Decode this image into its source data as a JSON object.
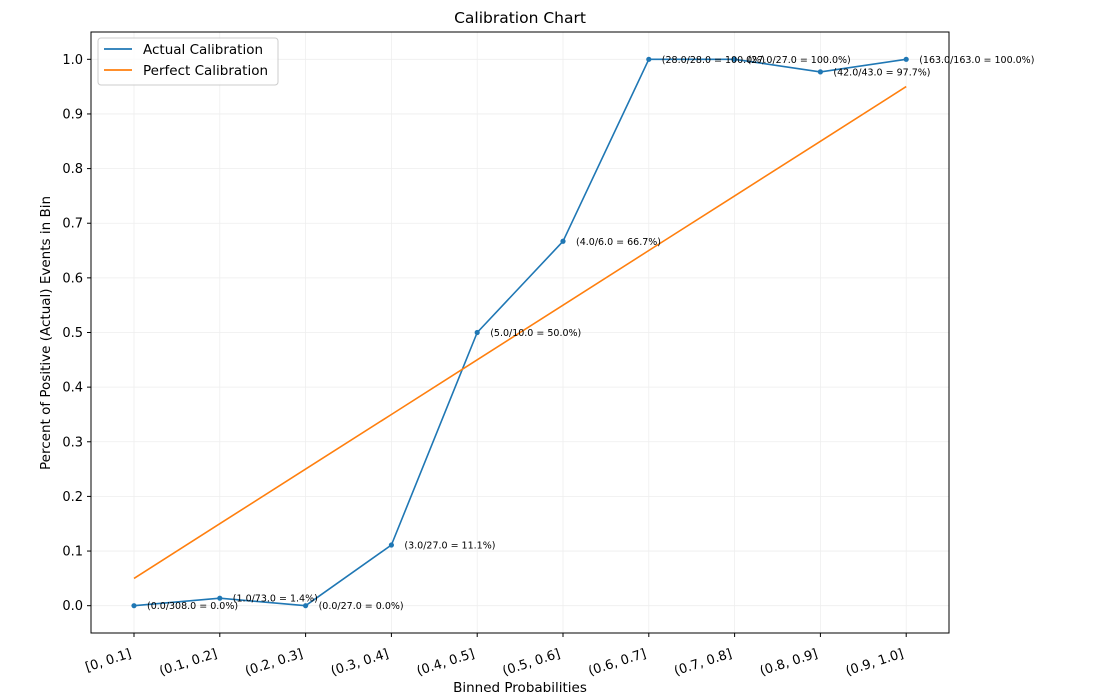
{
  "chart_data": {
    "type": "line",
    "title": "Calibration Chart",
    "xlabel": "Binned Probabilities",
    "ylabel": "Percent of Positive (Actual) Events in Bin",
    "categories": [
      "[0, 0.1]",
      "(0.1, 0.2]",
      "(0.2, 0.3]",
      "(0.3, 0.4]",
      "(0.4, 0.5]",
      "(0.5, 0.6]",
      "(0.6, 0.7]",
      "(0.7, 0.8]",
      "(0.8, 0.9]",
      "(0.9, 1.0]"
    ],
    "ylim": [
      -0.05,
      1.05
    ],
    "yticks": [
      0.0,
      0.1,
      0.2,
      0.3,
      0.4,
      0.5,
      0.6,
      0.7,
      0.8,
      0.9,
      1.0
    ],
    "ytick_labels": [
      "0.0",
      "0.1",
      "0.2",
      "0.3",
      "0.4",
      "0.5",
      "0.6",
      "0.7",
      "0.8",
      "0.9",
      "1.0"
    ],
    "grid": true,
    "legend_position": "top-left",
    "series": [
      {
        "name": "Actual Calibration",
        "color": "#1f77b4",
        "markers": true,
        "values": [
          0.0,
          0.0137,
          0.0,
          0.111,
          0.5,
          0.667,
          1.0,
          1.0,
          0.977,
          1.0
        ]
      },
      {
        "name": "Perfect Calibration",
        "color": "#ff7f0e",
        "markers": false,
        "values": [
          0.05,
          0.15,
          0.25,
          0.35,
          0.45,
          0.55,
          0.65,
          0.75,
          0.85,
          0.95
        ]
      }
    ],
    "annotations": [
      "(0.0/308.0 = 0.0%)",
      "(1.0/73.0 = 1.4%)",
      "(0.0/27.0 = 0.0%)",
      "(3.0/27.0 = 11.1%)",
      "(5.0/10.0 = 50.0%)",
      "(4.0/6.0 = 66.7%)",
      "(28.0/28.0 = 100.0%)",
      "(27.0/27.0 = 100.0%)",
      "(42.0/43.0 = 97.7%)",
      "(163.0/163.0 = 100.0%)"
    ]
  }
}
